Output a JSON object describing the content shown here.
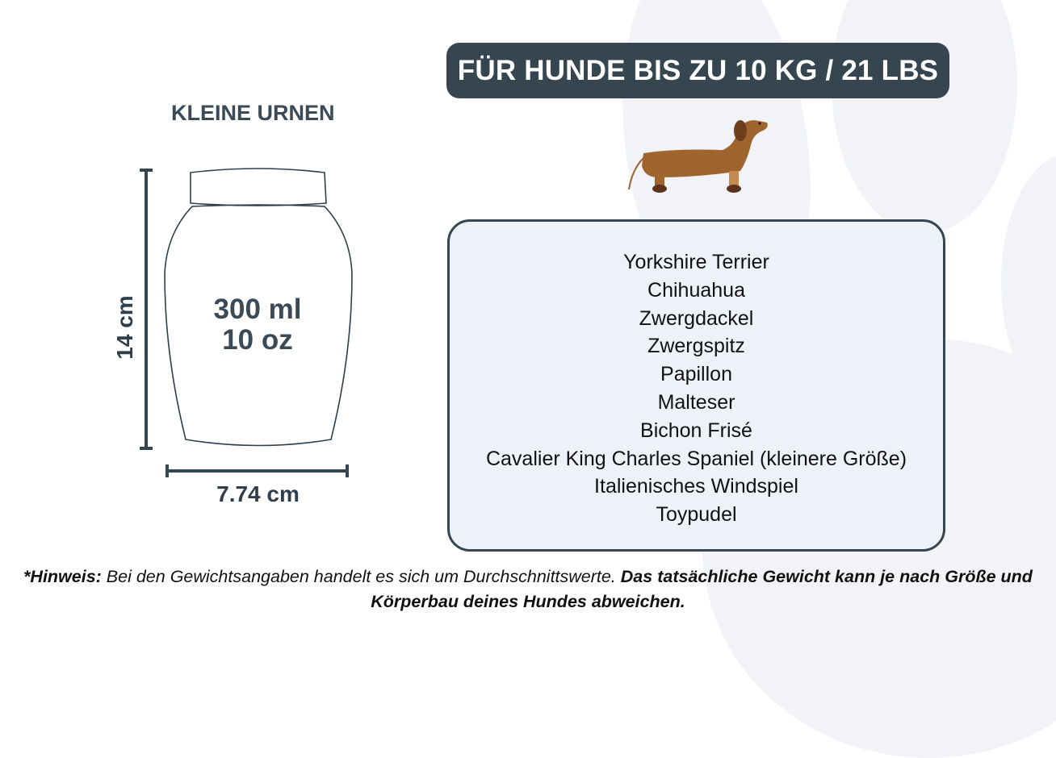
{
  "header": {
    "title": "FÜR HUNDE BIS ZU 10 KG / 21 LBS"
  },
  "urn": {
    "category": "KLEINE URNEN",
    "volume_ml": "300 ml",
    "volume_oz": "10 oz",
    "height": "14 cm",
    "width": "7.74 cm"
  },
  "breeds": [
    "Yorkshire Terrier",
    "Chihuahua",
    "Zwergdackel",
    "Zwergspitz",
    "Papillon",
    "Malteser",
    "Bichon Frisé",
    "Cavalier King Charles Spaniel (kleinere Größe)",
    "Italienisches Windspiel",
    "Toypudel"
  ],
  "note": {
    "label": "*Hinweis:",
    "text": " Bei den Gewichtsangaben handelt es sich um Durchschnittswerte. ",
    "bold_text": "Das tatsächliche Gewicht kann je nach Größe und Körperbau deines Hundes abweichen."
  },
  "colors": {
    "primary": "#354651",
    "box_bg": "#edf2f8",
    "paw_bg": "#f1f3f6",
    "dog": "#a0642f"
  },
  "icons": {
    "dog": "dachshund-illustration",
    "background": "paw-print"
  }
}
